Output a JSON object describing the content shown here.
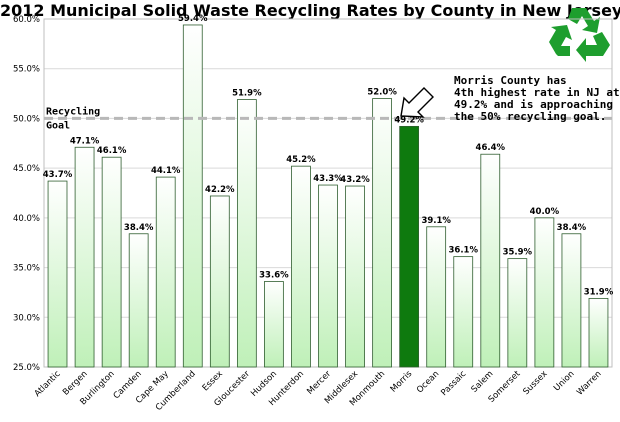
{
  "chart_data": {
    "type": "bar",
    "title": "2012 Municipal Solid Waste Recycling Rates by County in New Jersey",
    "categories": [
      "Atlantic",
      "Bergen",
      "Burlington",
      "Camden",
      "Cape May",
      "Cumberland",
      "Essex",
      "Gloucester",
      "Hudson",
      "Hunterdon",
      "Mercer",
      "Middlesex",
      "Monmouth",
      "Morris",
      "Ocean",
      "Passaic",
      "Salem",
      "Somerset",
      "Sussex",
      "Union",
      "Warren"
    ],
    "values": [
      43.7,
      47.1,
      46.1,
      38.4,
      44.1,
      59.4,
      42.2,
      51.9,
      33.6,
      45.2,
      43.3,
      43.2,
      52.0,
      49.2,
      39.1,
      36.1,
      46.4,
      35.9,
      40.0,
      38.4,
      31.9
    ],
    "data_labels": [
      "43.7%",
      "47.1%",
      "46.1%",
      "38.4%",
      "44.1%",
      "59.4%",
      "42.2%",
      "51.9%",
      "33.6%",
      "45.2%",
      "43.3%",
      "43.2%",
      "52.0%",
      "49.2%",
      "39.1%",
      "36.1%",
      "46.4%",
      "35.9%",
      "40.0%",
      "38.4%",
      "31.9%"
    ],
    "highlight_category": "Morris",
    "ylim": [
      25.0,
      60.0
    ],
    "yticks": [
      25.0,
      30.0,
      35.0,
      40.0,
      45.0,
      50.0,
      55.0,
      60.0
    ],
    "ytick_labels": [
      "25.0%",
      "30.0%",
      "35.0%",
      "40.0%",
      "45.0%",
      "50.0%",
      "55.0%",
      "60.0%"
    ],
    "xlabel": "",
    "ylabel": "",
    "grid": true,
    "goal_value": 50.0,
    "goal_label_lines": [
      "Recycling",
      "Goal"
    ],
    "annotation_lines": [
      "Morris County has",
      "4th highest rate in NJ at",
      "49.2% and is approaching",
      "the 50% recycling goal."
    ]
  },
  "colors": {
    "bar_fill_top": "#ffffff",
    "bar_fill_bottom": "#bff0b8",
    "bar_stroke": "#2f5e2f",
    "highlight_fill": "#0e7a0e",
    "grid": "#d9d9d9",
    "goal_line": "#b8b8b8",
    "logo": "#1e9e2e"
  },
  "icons": {
    "logo": "recycle-symbol-icon",
    "annotation": "arrow-icon"
  }
}
